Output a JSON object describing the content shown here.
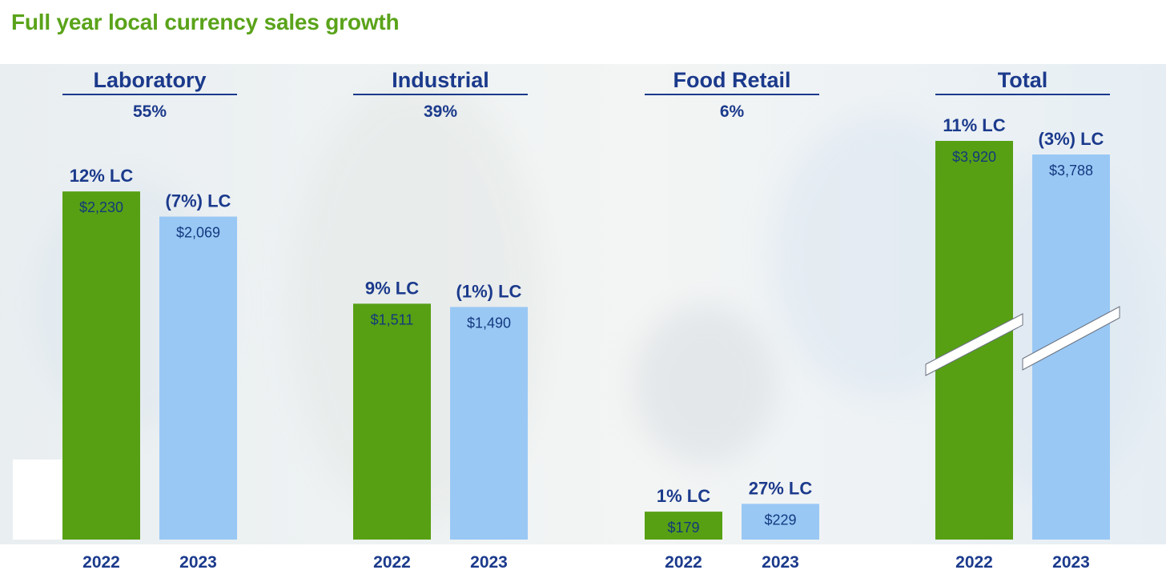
{
  "page": {
    "title": "Full year local currency sales growth",
    "title_color": "#5aa31a"
  },
  "colors": {
    "bar_2022": "#57a014",
    "bar_2023": "#99c8f5",
    "label_text": "#1b3a8c",
    "value_text_2022": "#103a7a",
    "value_text_2023": "#143a80",
    "header_rule": "#1b3a8c"
  },
  "chart_data": {
    "type": "bar",
    "title": "Full year local currency sales growth",
    "series_years": [
      "2022",
      "2023"
    ],
    "segments": [
      {
        "name": "Laboratory",
        "share": "55%",
        "bars": [
          {
            "year": "2022",
            "value": 2230,
            "value_label": "$2,230",
            "growth_label": "12% LC"
          },
          {
            "year": "2023",
            "value": 2069,
            "value_label": "$2,069",
            "growth_label": "(7%) LC"
          }
        ]
      },
      {
        "name": "Industrial",
        "share": "39%",
        "bars": [
          {
            "year": "2022",
            "value": 1511,
            "value_label": "$1,511",
            "growth_label": "9% LC"
          },
          {
            "year": "2023",
            "value": 1490,
            "value_label": "$1,490",
            "growth_label": "(1%) LC"
          }
        ]
      },
      {
        "name": "Food Retail",
        "share": "6%",
        "bars": [
          {
            "year": "2022",
            "value": 179,
            "value_label": "$179",
            "growth_label": "1% LC"
          },
          {
            "year": "2023",
            "value": 229,
            "value_label": "$229",
            "growth_label": "27% LC"
          }
        ]
      },
      {
        "name": "Total",
        "share": "",
        "axis_break": true,
        "bars": [
          {
            "year": "2022",
            "value": 3920,
            "value_label": "$3,920",
            "growth_label": "11% LC"
          },
          {
            "year": "2023",
            "value": 3788,
            "value_label": "$3,788",
            "growth_label": "(3%) LC"
          }
        ]
      }
    ]
  }
}
